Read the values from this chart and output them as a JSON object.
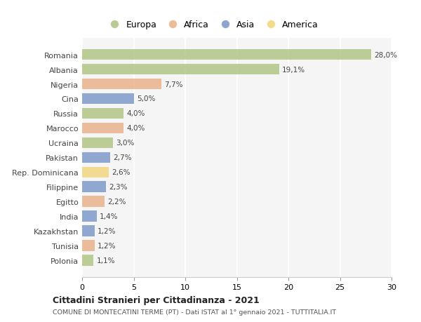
{
  "countries": [
    "Romania",
    "Albania",
    "Nigeria",
    "Cina",
    "Russia",
    "Marocco",
    "Ucraina",
    "Pakistan",
    "Rep. Dominicana",
    "Filippine",
    "Egitto",
    "India",
    "Kazakhstan",
    "Tunisia",
    "Polonia"
  ],
  "values": [
    28.0,
    19.1,
    7.7,
    5.0,
    4.0,
    4.0,
    3.0,
    2.7,
    2.6,
    2.3,
    2.2,
    1.4,
    1.2,
    1.2,
    1.1
  ],
  "labels": [
    "28,0%",
    "19,1%",
    "7,7%",
    "5,0%",
    "4,0%",
    "4,0%",
    "3,0%",
    "2,7%",
    "2,6%",
    "2,3%",
    "2,2%",
    "1,4%",
    "1,2%",
    "1,2%",
    "1,1%"
  ],
  "colors": [
    "#a8bf78",
    "#a8bf78",
    "#e8aa7e",
    "#6f8dc4",
    "#a8bf78",
    "#e8aa7e",
    "#a8bf78",
    "#6f8dc4",
    "#f2d26e",
    "#6f8dc4",
    "#e8aa7e",
    "#6f8dc4",
    "#6f8dc4",
    "#e8aa7e",
    "#a8bf78"
  ],
  "legend_labels": [
    "Europa",
    "Africa",
    "Asia",
    "America"
  ],
  "legend_colors": [
    "#a8bf78",
    "#e8aa7e",
    "#6f8dc4",
    "#f2d26e"
  ],
  "title": "Cittadini Stranieri per Cittadinanza - 2021",
  "subtitle": "COMUNE DI MONTECATINI TERME (PT) - Dati ISTAT al 1° gennaio 2021 - TUTTITALIA.IT",
  "xlim": [
    0,
    30
  ],
  "xticks": [
    0,
    5,
    10,
    15,
    20,
    25,
    30
  ],
  "background_color": "#ffffff",
  "plot_bg_color": "#f5f5f5",
  "grid_color": "#ffffff",
  "bar_height": 0.75
}
